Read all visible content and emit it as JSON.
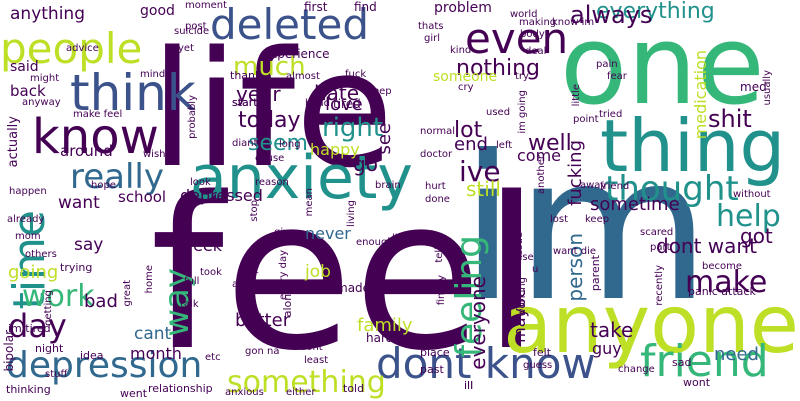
{
  "palette": {
    "deep_purple": "#440154",
    "indigo": "#3b528b",
    "blue": "#31688e",
    "teal": "#21918c",
    "green": "#35b779",
    "lime": "#90d743",
    "yellow": "#bddf26",
    "dark_gray": "#555555"
  },
  "words": [
    {
      "text": "feel",
      "color": "#440154",
      "weight": 100
    },
    {
      "text": "life",
      "color": "#440154",
      "weight": 95
    },
    {
      "text": "im",
      "color": "#31688e",
      "weight": 92
    },
    {
      "text": "one",
      "color": "#35b779",
      "weight": 90
    },
    {
      "text": "anyone",
      "color": "#bddf26",
      "weight": 70
    },
    {
      "text": "thing",
      "color": "#21918c",
      "weight": 65
    },
    {
      "text": "anxiety",
      "color": "#21918c",
      "weight": 62
    },
    {
      "text": "know",
      "color": "#440154",
      "weight": 55
    },
    {
      "text": "think",
      "color": "#3b528b",
      "weight": 52
    },
    {
      "text": "deleted",
      "color": "#3b528b",
      "weight": 50
    },
    {
      "text": "people",
      "color": "#bddf26",
      "weight": 45
    },
    {
      "text": "time",
      "color": "#21918c",
      "weight": 45
    },
    {
      "text": "dont know",
      "color": "#3b528b",
      "weight": 48
    },
    {
      "text": "friend",
      "color": "#35b779",
      "weight": 45
    },
    {
      "text": "depression",
      "color": "#31688e",
      "weight": 40
    },
    {
      "text": "even",
      "color": "#440154",
      "weight": 40
    },
    {
      "text": "really",
      "color": "#31688e",
      "weight": 35
    },
    {
      "text": "thought",
      "color": "#21918c",
      "weight": 35
    },
    {
      "text": "something",
      "color": "#bddf26",
      "weight": 32
    },
    {
      "text": "feeling",
      "color": "#35b779",
      "weight": 35
    },
    {
      "text": "way",
      "color": "#35b779",
      "weight": 32
    },
    {
      "text": "day",
      "color": "#440154",
      "weight": 30
    },
    {
      "text": "work",
      "color": "#35b779",
      "weight": 30
    },
    {
      "text": "make",
      "color": "#440154",
      "weight": 30
    },
    {
      "text": "help",
      "color": "#21918c",
      "weight": 30
    },
    {
      "text": "everything",
      "color": "#21918c",
      "weight": 25
    },
    {
      "text": "always",
      "color": "#440154",
      "weight": 22
    },
    {
      "text": "much",
      "color": "#bddf26",
      "weight": 25
    },
    {
      "text": "nothing",
      "color": "#440154",
      "weight": 22
    },
    {
      "text": "right",
      "color": "#21918c",
      "weight": 24
    },
    {
      "text": "today",
      "color": "#440154",
      "weight": 22
    },
    {
      "text": "seem",
      "color": "#21918c",
      "weight": 22
    },
    {
      "text": "ive",
      "color": "#440154",
      "weight": 26
    },
    {
      "text": "well",
      "color": "#440154",
      "weight": 22
    },
    {
      "text": "shit",
      "color": "#440154",
      "weight": 22
    },
    {
      "text": "hate",
      "color": "#440154",
      "weight": 20
    },
    {
      "text": "year",
      "color": "#440154",
      "weight": 20
    },
    {
      "text": "love",
      "color": "#440154",
      "weight": 17
    },
    {
      "text": "lot",
      "color": "#440154",
      "weight": 22
    },
    {
      "text": "go",
      "color": "#440154",
      "weight": 20
    },
    {
      "text": "see",
      "color": "#440154",
      "weight": 18
    },
    {
      "text": "end",
      "color": "#440154",
      "weight": 18
    },
    {
      "text": "happy",
      "color": "#bddf26",
      "weight": 16
    },
    {
      "text": "still",
      "color": "#bddf26",
      "weight": 20
    },
    {
      "text": "dont want",
      "color": "#440154",
      "weight": 20
    },
    {
      "text": "sometime",
      "color": "#440154",
      "weight": 18
    },
    {
      "text": "person",
      "color": "#31688e",
      "weight": 20
    },
    {
      "text": "got",
      "color": "#440154",
      "weight": 20
    },
    {
      "text": "everyone",
      "color": "#440154",
      "weight": 20
    },
    {
      "text": "better",
      "color": "#440154",
      "weight": 18
    },
    {
      "text": "family",
      "color": "#bddf26",
      "weight": 18
    },
    {
      "text": "take",
      "color": "#440154",
      "weight": 20
    },
    {
      "text": "need",
      "color": "#31688e",
      "weight": 18
    },
    {
      "text": "guy",
      "color": "#440154",
      "weight": 16
    },
    {
      "text": "cant",
      "color": "#31688e",
      "weight": 17
    },
    {
      "text": "month",
      "color": "#440154",
      "weight": 16
    },
    {
      "text": "bad",
      "color": "#440154",
      "weight": 18
    },
    {
      "text": "going",
      "color": "#bddf26",
      "weight": 18
    },
    {
      "text": "say",
      "color": "#440154",
      "weight": 17
    },
    {
      "text": "want",
      "color": "#440154",
      "weight": 17
    },
    {
      "text": "depressed",
      "color": "#440154",
      "weight": 16
    },
    {
      "text": "week",
      "color": "#440154",
      "weight": 16
    },
    {
      "text": "never",
      "color": "#31688e",
      "weight": 16
    },
    {
      "text": "job",
      "color": "#bddf26",
      "weight": 17
    },
    {
      "text": "maybe",
      "color": "#440154",
      "weight": 16
    },
    {
      "text": "come",
      "color": "#440154",
      "weight": 16
    },
    {
      "text": "fucking",
      "color": "#440154",
      "weight": 18
    },
    {
      "text": "medication",
      "color": "#bddf26",
      "weight": 16
    },
    {
      "text": "school",
      "color": "#440154",
      "weight": 15
    },
    {
      "text": "around",
      "color": "#440154",
      "weight": 15
    },
    {
      "text": "anything",
      "color": "#440154",
      "weight": 17
    },
    {
      "text": "good",
      "color": "#440154",
      "weight": 14
    },
    {
      "text": "said",
      "color": "#440154",
      "weight": 14
    },
    {
      "text": "back",
      "color": "#440154",
      "weight": 15
    },
    {
      "text": "actually",
      "color": "#440154",
      "weight": 13
    },
    {
      "text": "someone",
      "color": "#bddf26",
      "weight": 14
    },
    {
      "text": "problem",
      "color": "#440154",
      "weight": 14
    },
    {
      "text": "first",
      "color": "#440154",
      "weight": 12
    },
    {
      "text": "find",
      "color": "#440154",
      "weight": 12
    },
    {
      "text": "experience",
      "color": "#440154",
      "weight": 12
    },
    {
      "text": "thank",
      "color": "#440154",
      "weight": 11
    },
    {
      "text": "start",
      "color": "#440154",
      "weight": 11
    },
    {
      "text": "made",
      "color": "#440154",
      "weight": 12
    },
    {
      "text": "alone",
      "color": "#440154",
      "weight": 11
    },
    {
      "text": "hard",
      "color": "#440154",
      "weight": 12
    },
    {
      "text": "tired",
      "color": "#440154",
      "weight": 12
    },
    {
      "text": "panic attack",
      "color": "#440154",
      "weight": 11
    },
    {
      "text": "bipolar",
      "color": "#440154",
      "weight": 12
    },
    {
      "text": "thinking",
      "color": "#440154",
      "weight": 11
    },
    {
      "text": "relationship",
      "color": "#440154",
      "weight": 11
    },
    {
      "text": "went",
      "color": "#440154",
      "weight": 11
    },
    {
      "text": "told",
      "color": "#440154",
      "weight": 11
    },
    {
      "text": "past",
      "color": "#440154",
      "weight": 11
    },
    {
      "text": "ill",
      "color": "#440154",
      "weight": 11
    },
    {
      "text": "wont",
      "color": "#440154",
      "weight": 11
    },
    {
      "text": "sad",
      "color": "#440154",
      "weight": 11
    },
    {
      "text": "place",
      "color": "#440154",
      "weight": 11
    },
    {
      "text": "felt",
      "color": "#440154",
      "weight": 11
    },
    {
      "text": "least",
      "color": "#440154",
      "weight": 10
    },
    {
      "text": "dont",
      "color": "#440154",
      "weight": 10
    },
    {
      "text": "idea",
      "color": "#440154",
      "weight": 11
    },
    {
      "text": "night",
      "color": "#440154",
      "weight": 11
    },
    {
      "text": "im tired",
      "color": "#440154",
      "weight": 11
    },
    {
      "text": "getting",
      "color": "#440154",
      "weight": 10
    },
    {
      "text": "trying",
      "color": "#440154",
      "weight": 11
    },
    {
      "text": "others",
      "color": "#440154",
      "weight": 10
    },
    {
      "text": "mom",
      "color": "#440154",
      "weight": 10
    },
    {
      "text": "already",
      "color": "#440154",
      "weight": 10
    },
    {
      "text": "happen",
      "color": "#440154",
      "weight": 10
    },
    {
      "text": "hope",
      "color": "#440154",
      "weight": 10
    },
    {
      "text": "look",
      "color": "#440154",
      "weight": 10
    },
    {
      "text": "reason",
      "color": "#440154",
      "weight": 10
    },
    {
      "text": "mean",
      "color": "#440154",
      "weight": 10
    },
    {
      "text": "brain",
      "color": "#440154",
      "weight": 10
    },
    {
      "text": "hurt",
      "color": "#440154",
      "weight": 10
    },
    {
      "text": "done",
      "color": "#440154",
      "weight": 10
    },
    {
      "text": "lost",
      "color": "#440154",
      "weight": 10
    },
    {
      "text": "keep",
      "color": "#440154",
      "weight": 10
    },
    {
      "text": "scared",
      "color": "#440154",
      "weight": 10
    },
    {
      "text": "part",
      "color": "#440154",
      "weight": 10
    },
    {
      "text": "want die",
      "color": "#440154",
      "weight": 10
    },
    {
      "text": "become",
      "color": "#440154",
      "weight": 10
    },
    {
      "text": "full",
      "color": "#440154",
      "weight": 10
    },
    {
      "text": "talk",
      "color": "#440154",
      "weight": 10
    },
    {
      "text": "took",
      "color": "#440154",
      "weight": 10
    },
    {
      "text": "put",
      "color": "#440154",
      "weight": 10
    },
    {
      "text": "anymore",
      "color": "#440154",
      "weight": 10
    },
    {
      "text": "every day",
      "color": "#440154",
      "weight": 10
    },
    {
      "text": "gon na",
      "color": "#440154",
      "weight": 10
    },
    {
      "text": "etc",
      "color": "#440154",
      "weight": 10
    },
    {
      "text": "home",
      "color": "#440154",
      "weight": 10
    },
    {
      "text": "great",
      "color": "#440154",
      "weight": 10
    },
    {
      "text": "stuff",
      "color": "#440154",
      "weight": 10
    },
    {
      "text": "anxious",
      "color": "#440154",
      "weight": 10
    },
    {
      "text": "either",
      "color": "#440154",
      "weight": 10
    },
    {
      "text": "start",
      "color": "#440154",
      "weight": 10
    },
    {
      "text": "live",
      "color": "#440154",
      "weight": 10
    },
    {
      "text": "enough",
      "color": "#440154",
      "weight": 10
    },
    {
      "text": "living",
      "color": "#440154",
      "weight": 10
    },
    {
      "text": "give",
      "color": "#440154",
      "weight": 10
    },
    {
      "text": "issue",
      "color": "#440154",
      "weight": 10
    },
    {
      "text": "use",
      "color": "#440154",
      "weight": 10
    },
    {
      "text": "u",
      "color": "#440154",
      "weight": 10
    },
    {
      "text": "working",
      "color": "#440154",
      "weight": 10
    },
    {
      "text": "therapy",
      "color": "#440154",
      "weight": 10
    },
    {
      "text": "recently",
      "color": "#440154",
      "weight": 10
    },
    {
      "text": "change",
      "color": "#440154",
      "weight": 10
    },
    {
      "text": "finally",
      "color": "#440154",
      "weight": 10
    },
    {
      "text": "tell",
      "color": "#440154",
      "weight": 10
    },
    {
      "text": "parent",
      "color": "#440154",
      "weight": 11
    },
    {
      "text": "suicide",
      "color": "#440154",
      "weight": 10
    },
    {
      "text": "moment",
      "color": "#440154",
      "weight": 10
    },
    {
      "text": "post",
      "color": "#440154",
      "weight": 10
    },
    {
      "text": "world",
      "color": "#440154",
      "weight": 10
    },
    {
      "text": "know im",
      "color": "#440154",
      "weight": 10
    },
    {
      "text": "making",
      "color": "#440154",
      "weight": 10
    },
    {
      "text": "thats",
      "color": "#440154",
      "weight": 10
    },
    {
      "text": "body",
      "color": "#440154",
      "weight": 10
    },
    {
      "text": "girl",
      "color": "#440154",
      "weight": 10
    },
    {
      "text": "kind",
      "color": "#440154",
      "weight": 10
    },
    {
      "text": "deal",
      "color": "#440154",
      "weight": 10
    },
    {
      "text": "try",
      "color": "#440154",
      "weight": 10
    },
    {
      "text": "fear",
      "color": "#440154",
      "weight": 10
    },
    {
      "text": "pain",
      "color": "#440154",
      "weight": 10
    },
    {
      "text": "little",
      "color": "#440154",
      "weight": 10
    },
    {
      "text": "med",
      "color": "#440154",
      "weight": 12
    },
    {
      "text": "usually",
      "color": "#440154",
      "weight": 10
    },
    {
      "text": "advice",
      "color": "#440154",
      "weight": 10
    },
    {
      "text": "might",
      "color": "#440154",
      "weight": 10
    },
    {
      "text": "anyway",
      "color": "#440154",
      "weight": 10
    },
    {
      "text": "make feel",
      "color": "#440154",
      "weight": 10
    },
    {
      "text": "mind",
      "color": "#440154",
      "weight": 10
    },
    {
      "text": "wish",
      "color": "#440154",
      "weight": 10
    },
    {
      "text": "cause",
      "color": "#440154",
      "weight": 10
    },
    {
      "text": "diant",
      "color": "#440154",
      "weight": 10
    },
    {
      "text": "long",
      "color": "#440154",
      "weight": 10
    },
    {
      "text": "probably",
      "color": "#440154",
      "weight": 10
    },
    {
      "text": "yet",
      "color": "#440154",
      "weight": 10
    },
    {
      "text": "almost",
      "color": "#440154",
      "weight": 10
    },
    {
      "text": "head",
      "color": "#440154",
      "weight": 10
    },
    {
      "text": "sleep",
      "color": "#440154",
      "weight": 10
    },
    {
      "text": "fuck",
      "color": "#440154",
      "weight": 10
    },
    {
      "text": "cry",
      "color": "#440154",
      "weight": 10
    },
    {
      "text": "used",
      "color": "#440154",
      "weight": 10
    },
    {
      "text": "left",
      "color": "#440154",
      "weight": 10
    },
    {
      "text": "normal",
      "color": "#440154",
      "weight": 10
    },
    {
      "text": "doctor",
      "color": "#440154",
      "weight": 10
    },
    {
      "text": "another",
      "color": "#440154",
      "weight": 10
    },
    {
      "text": "point",
      "color": "#440154",
      "weight": 10
    },
    {
      "text": "tried",
      "color": "#440154",
      "weight": 10
    },
    {
      "text": "im going",
      "color": "#440154",
      "weight": 10
    },
    {
      "text": "away",
      "color": "#440154",
      "weight": 10
    },
    {
      "text": "friend",
      "color": "#440154",
      "weight": 10
    },
    {
      "text": "without",
      "color": "#440154",
      "weight": 10
    },
    {
      "text": "guess",
      "color": "#440154",
      "weight": 10
    },
    {
      "text": "stop",
      "color": "#440154",
      "weight": 10
    },
    {
      "text": "ill",
      "color": "#440154",
      "weight": 10
    }
  ]
}
